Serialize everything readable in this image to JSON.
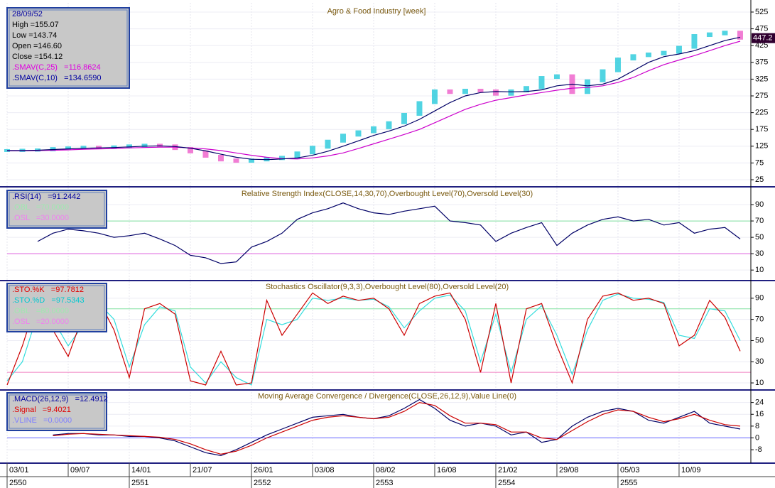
{
  "chart_data": [
    {
      "type": "line",
      "title": "Agro & Food Industry [week]",
      "info": [
        {
          "text": "28/09/52",
          "color": "#0000a0"
        },
        {
          "text": "High =155.07",
          "color": "#000000"
        },
        {
          "text": "Low =143.74",
          "color": "#000000"
        },
        {
          "text": "Open =146.60",
          "color": "#000000"
        },
        {
          "text": "Close =154.12",
          "color": "#000000"
        },
        {
          "text": ".SMAV(C,25)   =116.8624",
          "color": "#e000e0"
        },
        {
          "text": ".SMAV(C,10)   =134.6590",
          "color": "#0000a0"
        }
      ],
      "ylim": [
        6,
        544
      ],
      "yticks": [
        25,
        75,
        125,
        175,
        225,
        275,
        325,
        375,
        425,
        475,
        525
      ],
      "current_value": 447.2,
      "series": [
        {
          "style": "bars",
          "color": "#33ccdd",
          "down_color": "#ee66cc",
          "values": [
            112,
            113,
            114,
            118,
            120,
            122,
            121,
            123,
            126,
            128,
            126,
            118,
            108,
            95,
            84,
            80,
            84,
            88,
            92,
            105,
            122,
            140,
            158,
            168,
            180,
            195,
            220,
            255,
            290,
            285,
            292,
            290,
            280,
            290,
            300,
            330,
            335,
            285,
            320,
            350,
            385,
            395,
            400,
            405,
            420,
            455,
            460,
            465,
            447
          ]
        },
        {
          "color": "#cc00cc",
          "values": [
            111,
            111,
            112,
            113,
            114,
            116,
            117,
            118,
            120,
            121,
            122,
            122,
            120,
            117,
            112,
            105,
            98,
            92,
            88,
            87,
            90,
            96,
            105,
            118,
            132,
            146,
            160,
            175,
            195,
            215,
            235,
            250,
            262,
            270,
            278,
            285,
            292,
            298,
            300,
            305,
            315,
            330,
            350,
            368,
            382,
            395,
            410,
            425,
            438
          ]
        },
        {
          "color": "#000066",
          "values": [
            112,
            112,
            113,
            115,
            117,
            119,
            120,
            121,
            123,
            125,
            126,
            124,
            119,
            111,
            101,
            92,
            86,
            85,
            87,
            90,
            98,
            110,
            125,
            141,
            157,
            170,
            185,
            205,
            230,
            255,
            275,
            285,
            288,
            287,
            288,
            293,
            305,
            310,
            305,
            310,
            325,
            350,
            375,
            392,
            400,
            410,
            425,
            440,
            450
          ]
        }
      ]
    },
    {
      "type": "line",
      "title": "Relative Strength Index(CLOSE,14,30,70),Overbought Level(70),Oversold Level(30)",
      "info": [
        {
          "text": ".RSI(14)   =91.2442",
          "color": "#0000a0"
        },
        {
          "text": ".OBL   =70.0000",
          "color": "#a0e8b0"
        },
        {
          "text": ".OSL   =30.0000",
          "color": "#f080f0"
        }
      ],
      "ylim": [
        -2,
        110
      ],
      "yticks": [
        10,
        30,
        50,
        70,
        90
      ],
      "ref_lines": [
        {
          "value": 70,
          "color": "#80e0a0"
        },
        {
          "value": 30,
          "color": "#e060e0"
        }
      ],
      "series": [
        {
          "color": "#000066",
          "values": [
            null,
            null,
            45,
            55,
            60,
            58,
            55,
            50,
            52,
            55,
            48,
            40,
            28,
            25,
            18,
            20,
            38,
            45,
            55,
            72,
            80,
            85,
            92,
            85,
            80,
            78,
            82,
            85,
            88,
            70,
            68,
            65,
            45,
            55,
            62,
            68,
            40,
            55,
            65,
            72,
            75,
            70,
            72,
            65,
            68,
            55,
            60,
            62,
            48
          ]
        }
      ]
    },
    {
      "type": "line",
      "title": "Stochastics Oscillator(9,3,3),Overbought Level(80),Oversold Level(20)",
      "info": [
        {
          "text": ".STO.%K   =97.7812",
          "color": "#e00000"
        },
        {
          "text": ".STO.%D   =97.5343",
          "color": "#00c8d0"
        },
        {
          "text": ".OBL   =80.0000",
          "color": "#a0e8b0"
        },
        {
          "text": ".OSL   =20.0000",
          "color": "#f080f0"
        }
      ],
      "ylim": [
        4,
        106
      ],
      "yticks": [
        10,
        30,
        50,
        70,
        90
      ],
      "ref_lines": [
        {
          "value": 80,
          "color": "#80e0a0"
        },
        {
          "value": 20,
          "color": "#f080c0"
        }
      ],
      "series": [
        {
          "color": "#33dddd",
          "values": [
            12,
            30,
            75,
            70,
            45,
            65,
            85,
            70,
            25,
            65,
            82,
            78,
            25,
            10,
            30,
            15,
            8,
            70,
            65,
            70,
            90,
            88,
            90,
            88,
            89,
            82,
            62,
            78,
            90,
            93,
            78,
            30,
            75,
            20,
            70,
            83,
            55,
            18,
            60,
            88,
            94,
            90,
            89,
            86,
            55,
            52,
            80,
            78,
            50
          ]
        },
        {
          "color": "#cc0000",
          "values": [
            8,
            45,
            90,
            60,
            35,
            75,
            88,
            60,
            15,
            80,
            85,
            75,
            12,
            8,
            40,
            8,
            10,
            88,
            55,
            75,
            95,
            85,
            92,
            88,
            90,
            80,
            55,
            85,
            92,
            95,
            70,
            20,
            85,
            10,
            80,
            85,
            45,
            10,
            70,
            92,
            95,
            88,
            90,
            85,
            45,
            55,
            88,
            72,
            40
          ]
        }
      ]
    },
    {
      "type": "line",
      "title": "Moving Average Convergence / Divergence(CLOSE,26,12,9),Value Line(0)",
      "info": [
        {
          "text": ".MACD(26,12,9)   =12.4912",
          "color": "#0000a0"
        },
        {
          "text": ".Signal   =9.4021",
          "color": "#e00000"
        },
        {
          "text": ".VLINE   =0.0000",
          "color": "#8080ff"
        }
      ],
      "ylim": [
        -16.6,
        32
      ],
      "yticks": [
        24,
        16,
        8,
        0,
        -8
      ],
      "ref_lines": [
        {
          "value": 0,
          "color": "#6060ff"
        }
      ],
      "series": [
        {
          "color": "#000066",
          "values": [
            null,
            null,
            null,
            2,
            3,
            3,
            2,
            2,
            1,
            1,
            0,
            -2,
            -6,
            -10,
            -12,
            -8,
            -3,
            2,
            6,
            10,
            14,
            15,
            16,
            14,
            13,
            15,
            20,
            26,
            20,
            12,
            8,
            10,
            8,
            2,
            4,
            -3,
            -1,
            8,
            14,
            18,
            20,
            18,
            12,
            10,
            14,
            18,
            10,
            8,
            6
          ]
        },
        {
          "color": "#cc0000",
          "values": [
            null,
            null,
            null,
            1.5,
            2.5,
            3,
            2.5,
            2,
            1.5,
            1,
            0.5,
            -1,
            -4,
            -8,
            -11,
            -9,
            -5,
            0,
            4,
            8,
            12,
            14,
            15,
            14,
            13,
            14,
            18,
            24,
            22,
            15,
            10,
            10,
            9,
            4,
            4,
            0,
            -1,
            5,
            11,
            16,
            19,
            18,
            14,
            11,
            13,
            16,
            12,
            9,
            8
          ]
        }
      ]
    }
  ],
  "x_axis": {
    "xlim": [
      0,
      48.7
    ],
    "xticks": [
      {
        "value": 0,
        "label": "03/01"
      },
      {
        "value": 4,
        "label": "09/07"
      },
      {
        "value": 8,
        "label": "14/01"
      },
      {
        "value": 12,
        "label": "21/07"
      },
      {
        "value": 16,
        "label": "26/01"
      },
      {
        "value": 20,
        "label": "03/08"
      },
      {
        "value": 24,
        "label": "08/02"
      },
      {
        "value": 28,
        "label": "16/08"
      },
      {
        "value": 32,
        "label": "21/02"
      },
      {
        "value": 36,
        "label": "29/08"
      },
      {
        "value": 40,
        "label": "05/03"
      },
      {
        "value": 44,
        "label": "10/09"
      }
    ],
    "year_ticks": [
      {
        "value": 0,
        "label": "2550"
      },
      {
        "value": 8,
        "label": "2551"
      },
      {
        "value": 16,
        "label": "2552"
      },
      {
        "value": 24,
        "label": "2553"
      },
      {
        "value": 32,
        "label": "2554"
      },
      {
        "value": 40,
        "label": "2555"
      }
    ]
  }
}
